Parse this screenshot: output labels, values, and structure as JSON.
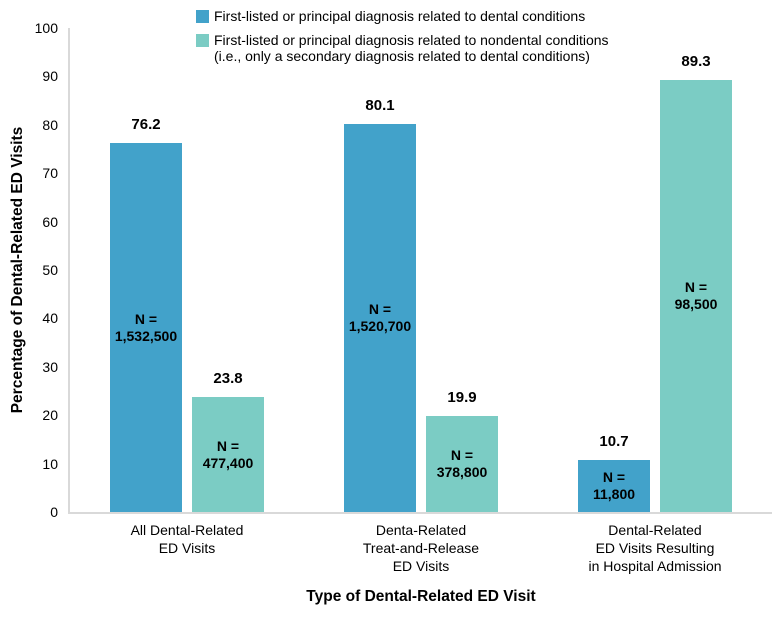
{
  "colors": {
    "dental_series": "#42a2ca",
    "nondental_series": "#7bccc4",
    "axis_line": "#d9d9d9",
    "text": "#000000",
    "background": "#ffffff"
  },
  "chart_data": {
    "type": "bar",
    "title": "",
    "xlabel": "Type of Dental-Related ED Visit",
    "ylabel": "Percentage of Dental-Related ED Visits",
    "ylim": [
      0,
      100
    ],
    "ytick_step": 10,
    "grid": false,
    "legend_position": "top",
    "categories": [
      "All Dental-Related\nED Visits",
      "Denta-Related\nTreat-and-Release\nED Visits",
      "Dental-Related\nED Visits Resulting\nin Hospital Admission"
    ],
    "series": [
      {
        "name": "First-listed or principal diagnosis related to dental conditions",
        "legend_label": "First-listed or principal diagnosis related to dental conditions",
        "color": "#42a2ca",
        "values": [
          76.2,
          80.1,
          10.7
        ],
        "value_labels": [
          "76.2",
          "80.1",
          "10.7"
        ],
        "n_labels": [
          "N =\n1,532,500",
          "N =\n1,520,700",
          "N =\n11,800"
        ]
      },
      {
        "name": "First-listed or principal diagnosis related to nondental conditions (i.e., only a secondary diagnosis related to dental conditions)",
        "legend_label": "First-listed or principal diagnosis related to nondental conditions\n(i.e., only a secondary diagnosis related to dental conditions)",
        "color": "#7bccc4",
        "values": [
          23.8,
          19.9,
          89.3
        ],
        "value_labels": [
          "23.8",
          "19.9",
          "89.3"
        ],
        "n_labels": [
          "N =\n477,400",
          "N =\n378,800",
          "N =\n98,500"
        ]
      }
    ],
    "ytick_labels": [
      "0",
      "10",
      "20",
      "30",
      "40",
      "50",
      "60",
      "70",
      "80",
      "90",
      "100"
    ]
  }
}
